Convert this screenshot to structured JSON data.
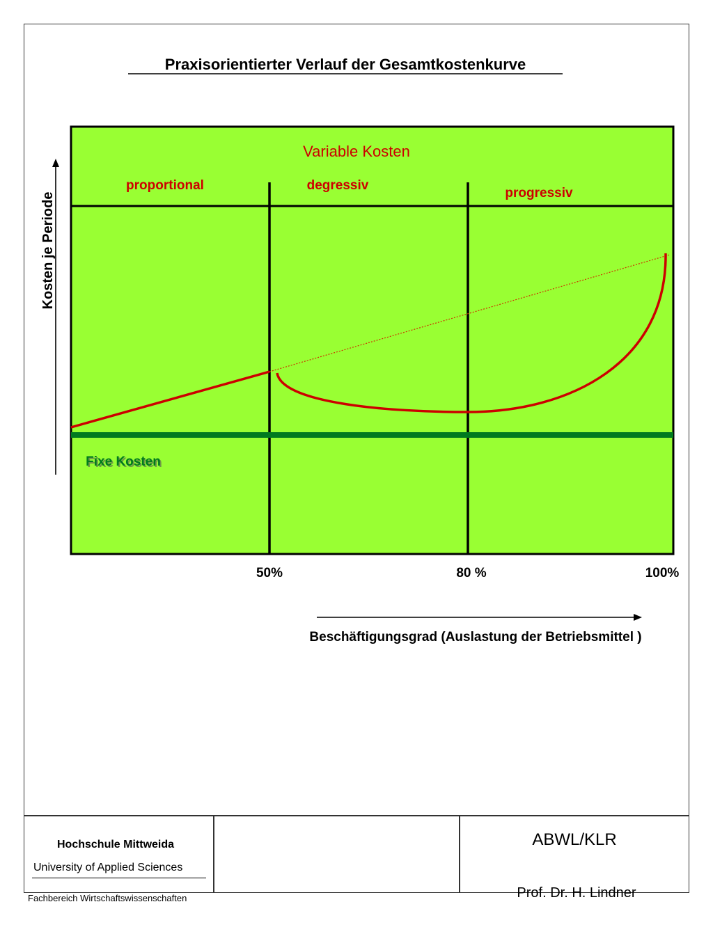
{
  "title": "Praxisorientierter Verlauf der Gesamtkostenkurve",
  "y_axis_label": "Kosten je Periode",
  "x_axis_label": "Beschäftigungsgrad (Auslastung der Betriebsmittel )",
  "variable_costs_label": "Variable Kosten",
  "fixed_costs_label": "Fixe Kosten",
  "segments": [
    {
      "label": "proportional"
    },
    {
      "label": "degressiv"
    },
    {
      "label": "progressiv"
    }
  ],
  "x_ticks": [
    "50%",
    "80 %",
    "100%"
  ],
  "colors": {
    "background": "#99ff33",
    "variable_curve": "#cc0000",
    "fixed_line": "#007a1f",
    "dotted_line": "#cc3300",
    "frame": "#000000"
  },
  "footer": {
    "institution": "Hochschule Mittweida",
    "subtitle": "University of Applied Sciences",
    "department": "Fachbereich Wirtschaftswissenschaften",
    "course": "ABWL/KLR",
    "author": "Prof. Dr. H. Lindner"
  }
}
